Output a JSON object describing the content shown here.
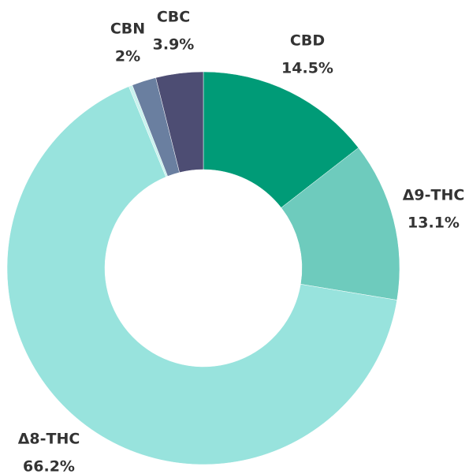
{
  "chart_data": {
    "type": "donut",
    "categories": [
      "CBD",
      "Δ9-THC",
      "Δ8-THC",
      null,
      "CBN",
      "CBC"
    ],
    "values": [
      14.5,
      13.1,
      66.2,
      0.3,
      2,
      3.9
    ],
    "value_labels": [
      "14.5%",
      "13.1%",
      "66.2%",
      null,
      "2%",
      "3.9%"
    ],
    "colors": [
      "#009b77",
      "#6ecbbd",
      "#98e3dd",
      "#c9f2ee",
      "#6a7fa0",
      "#4d4d73"
    ]
  }
}
